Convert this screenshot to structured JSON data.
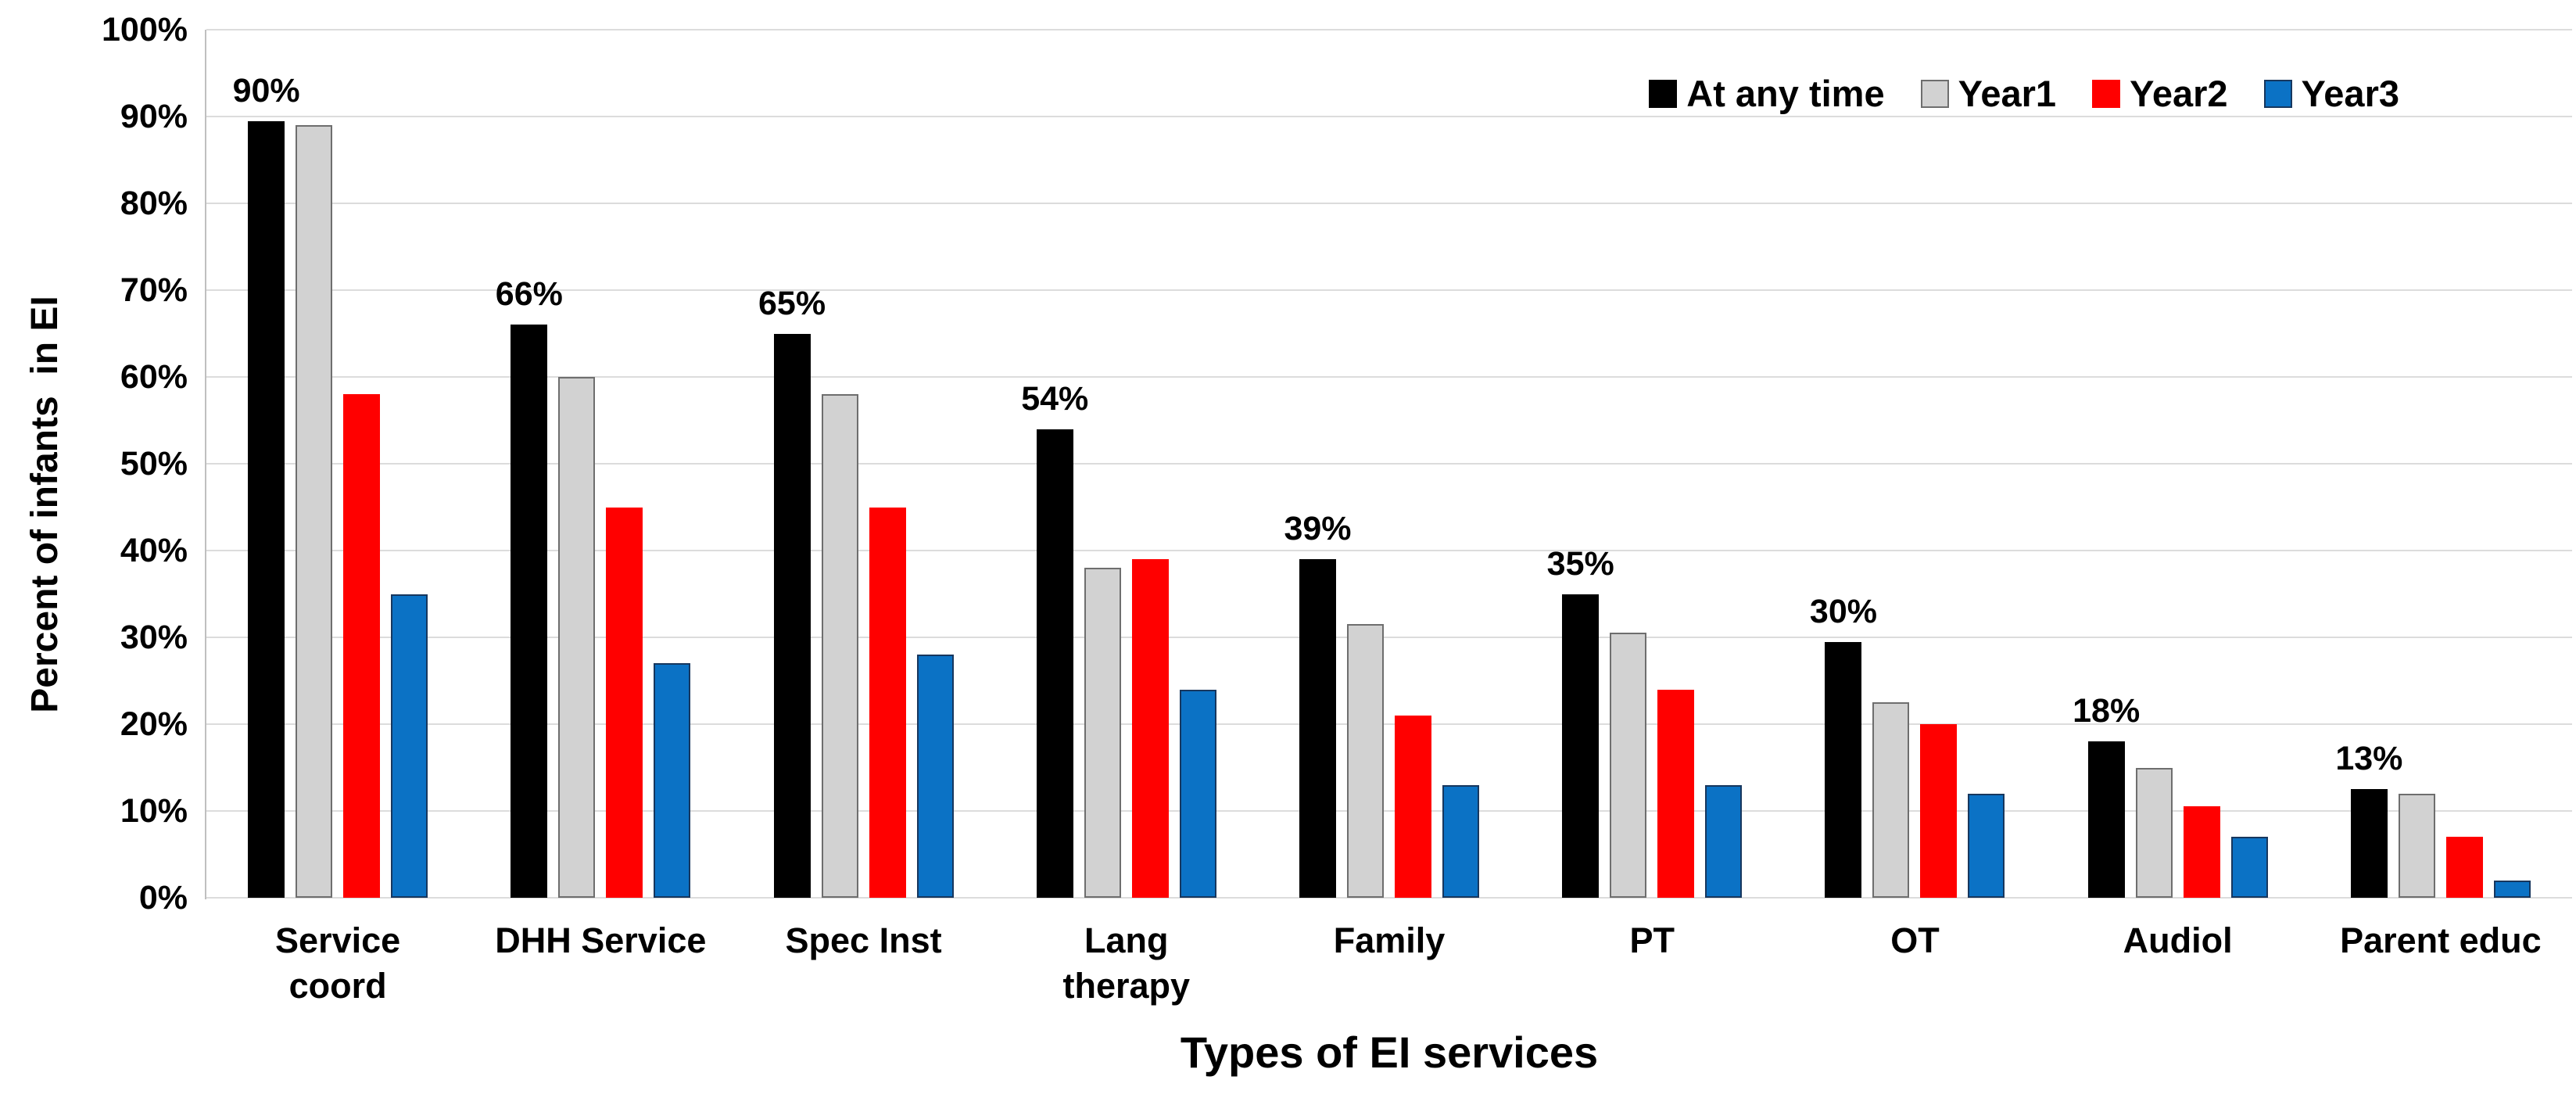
{
  "chart_data": {
    "type": "bar",
    "title": "",
    "xlabel": "Types of EI services",
    "ylabel": "Percent of infants  in EI",
    "categories": [
      "Service coord",
      "DHH Service",
      "Spec Inst",
      "Lang therapy",
      "Family",
      "PT",
      "OT",
      "Audiol",
      "Parent educ"
    ],
    "category_label_lines": [
      [
        "Service",
        "coord"
      ],
      [
        "DHH Service"
      ],
      [
        "Spec Inst"
      ],
      [
        "Lang",
        "therapy"
      ],
      [
        "Family"
      ],
      [
        "PT"
      ],
      [
        "OT"
      ],
      [
        "Audiol"
      ],
      [
        "Parent educ"
      ]
    ],
    "series": [
      {
        "name": "At any time",
        "color": "#000000",
        "border": null,
        "values": [
          89.5,
          66,
          65,
          54,
          39,
          35,
          29.5,
          18,
          12.5
        ]
      },
      {
        "name": "Year1",
        "color": "#d2d2d2",
        "border": "#6e6e6e",
        "values": [
          89,
          60,
          58,
          38,
          31.5,
          30.5,
          22.5,
          15,
          12
        ]
      },
      {
        "name": "Year2",
        "color": "#ff0000",
        "border": null,
        "values": [
          58,
          45,
          45,
          39,
          21,
          24,
          20,
          10.5,
          7
        ]
      },
      {
        "name": "Year3",
        "color": "#0b72c5",
        "border": "#17375e",
        "values": [
          35,
          27,
          28,
          24,
          13,
          13,
          12,
          7,
          2
        ]
      }
    ],
    "bar_labels": {
      "series": "At any time",
      "values": [
        "90%",
        "66%",
        "65%",
        "54%",
        "39%",
        "35%",
        "30%",
        "18%",
        "13%"
      ]
    },
    "y_ticks": [
      "0%",
      "10%",
      "20%",
      "30%",
      "40%",
      "50%",
      "60%",
      "70%",
      "80%",
      "90%",
      "100%"
    ],
    "ylim": [
      0,
      100
    ],
    "grid": "horizontal",
    "legend_position": "top-right"
  },
  "colors": {
    "background": "#ffffff",
    "gridline": "#dcdcdc",
    "axis_line": "#bfbfbf",
    "text": "#000000"
  }
}
